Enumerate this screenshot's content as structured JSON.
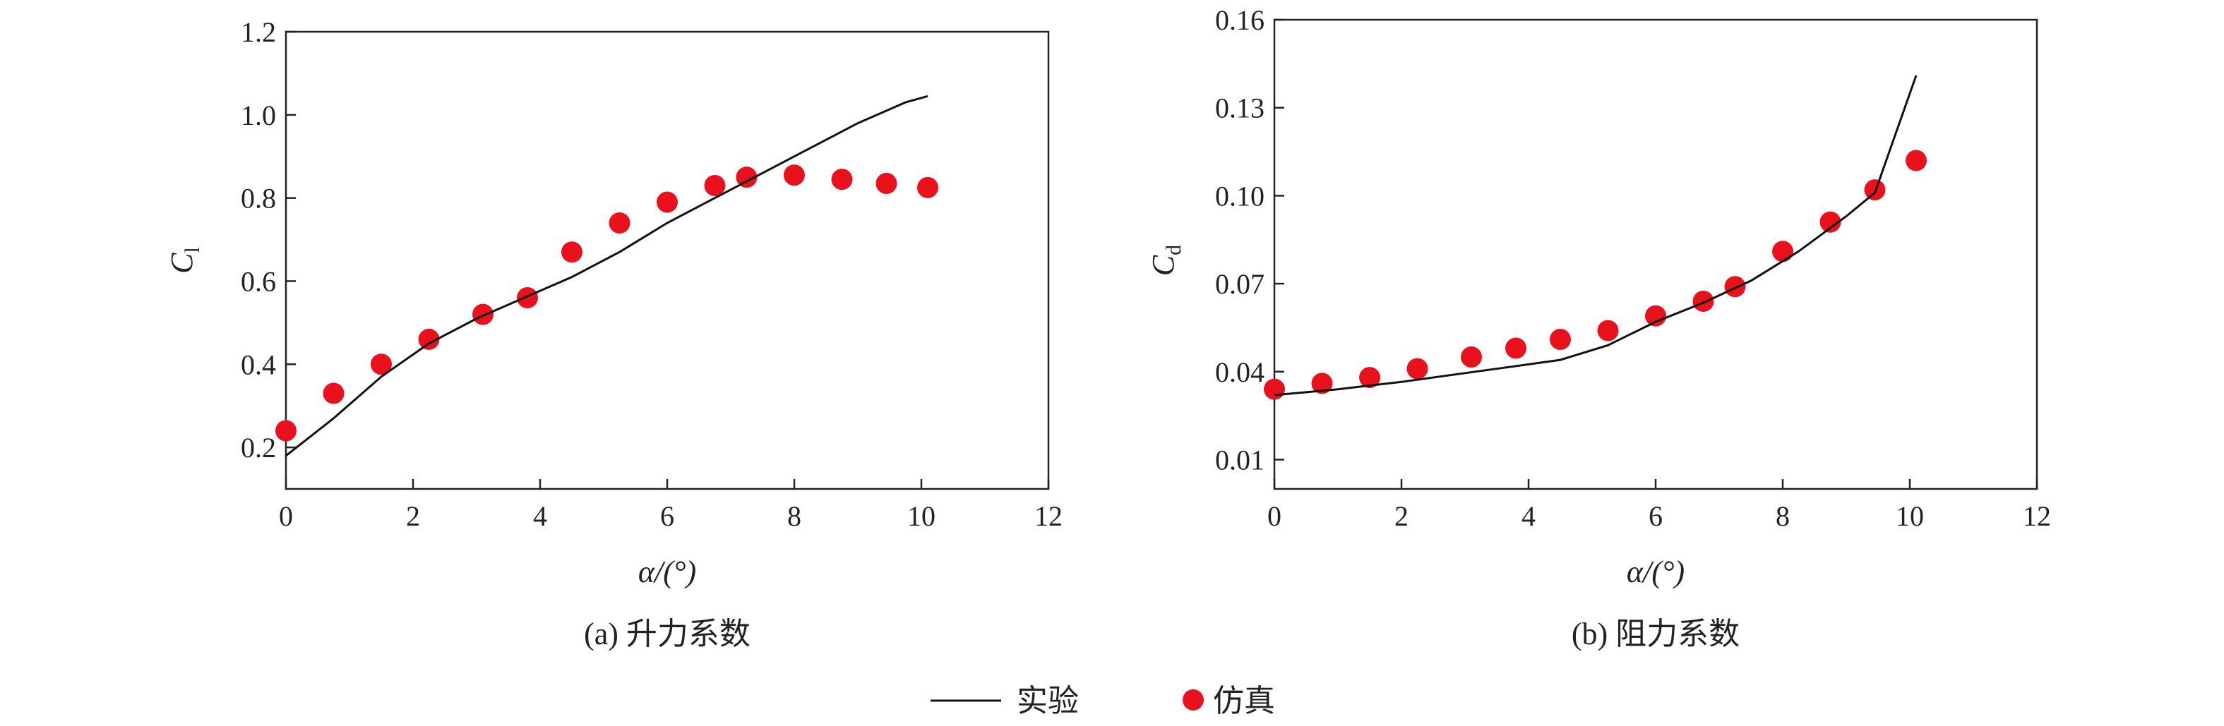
{
  "legend": {
    "experiment_label": "实验",
    "simulation_label": "仿真"
  },
  "colors": {
    "experiment": "#111111",
    "simulation": "#e8111c",
    "axis": "#222222"
  },
  "chart_data": [
    {
      "type": "scatter",
      "caption": "(a) 升力系数",
      "xlabel": "α/(°)",
      "ylabel_main": "C",
      "ylabel_sub": "l",
      "xlim": [
        0,
        12
      ],
      "ylim": [
        0.1,
        1.2
      ],
      "xticks": [
        0,
        2,
        4,
        6,
        8,
        10,
        12
      ],
      "yticks": [
        0.2,
        0.4,
        0.6,
        0.8,
        1.0,
        1.2
      ],
      "ytick_labels": [
        "0.2",
        "0.4",
        "0.6",
        "0.8",
        "1.0",
        "1.2"
      ],
      "legend_position": "bottom",
      "series": [
        {
          "name": "实验",
          "kind": "line",
          "x": [
            0,
            0.75,
            1.5,
            2.25,
            3.0,
            3.75,
            4.5,
            5.25,
            6.0,
            6.75,
            7.5,
            8.25,
            9.0,
            9.75,
            10.1
          ],
          "y": [
            0.18,
            0.27,
            0.37,
            0.45,
            0.51,
            0.56,
            0.61,
            0.67,
            0.74,
            0.8,
            0.86,
            0.92,
            0.98,
            1.03,
            1.045
          ]
        },
        {
          "name": "仿真",
          "kind": "scatter",
          "x": [
            0,
            0.75,
            1.5,
            2.25,
            3.1,
            3.8,
            4.5,
            5.25,
            6.0,
            6.75,
            7.25,
            8.0,
            8.75,
            9.45,
            10.1
          ],
          "y": [
            0.24,
            0.33,
            0.4,
            0.46,
            0.52,
            0.56,
            0.67,
            0.74,
            0.79,
            0.83,
            0.85,
            0.855,
            0.845,
            0.835,
            0.825
          ]
        }
      ]
    },
    {
      "type": "scatter",
      "caption": "(b) 阻力系数",
      "xlabel": "α/(°)",
      "ylabel_main": "C",
      "ylabel_sub": "d",
      "xlim": [
        0,
        12
      ],
      "ylim": [
        0.0,
        0.16
      ],
      "xticks": [
        0,
        2,
        4,
        6,
        8,
        10,
        12
      ],
      "yticks": [
        0.01,
        0.04,
        0.07,
        0.1,
        0.13,
        0.16
      ],
      "ytick_labels": [
        "0.01",
        "0.04",
        "0.07",
        "0.10",
        "0.13",
        "0.16"
      ],
      "legend_position": "bottom",
      "series": [
        {
          "name": "实验",
          "kind": "line",
          "x": [
            0,
            1.0,
            2.0,
            3.0,
            4.0,
            4.5,
            5.25,
            6.0,
            6.75,
            7.5,
            8.25,
            9.0,
            9.45,
            10.1
          ],
          "y": [
            0.032,
            0.034,
            0.0365,
            0.0395,
            0.0425,
            0.044,
            0.049,
            0.057,
            0.0635,
            0.071,
            0.081,
            0.093,
            0.101,
            0.141
          ]
        },
        {
          "name": "仿真",
          "kind": "scatter",
          "x": [
            0,
            0.75,
            1.5,
            2.25,
            3.1,
            3.8,
            4.5,
            5.25,
            6.0,
            6.75,
            7.25,
            8.0,
            8.75,
            9.45,
            10.1
          ],
          "y": [
            0.034,
            0.036,
            0.038,
            0.041,
            0.045,
            0.048,
            0.051,
            0.054,
            0.059,
            0.064,
            0.069,
            0.081,
            0.091,
            0.102,
            0.112
          ]
        }
      ]
    }
  ]
}
